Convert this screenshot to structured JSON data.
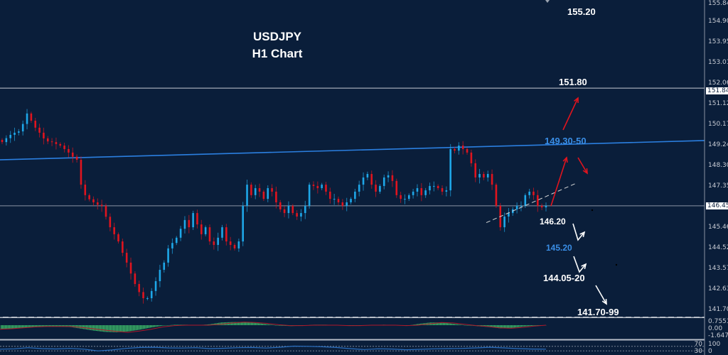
{
  "title": {
    "symbol": "USDJPY",
    "timeframe": "H1 Chart"
  },
  "colors": {
    "background": "#0a1e3a",
    "bull": "#1ea7e8",
    "bear": "#e0141e",
    "trendline": "#2b7fe0",
    "support_line": "#d0d0d0",
    "macd_hist": "#3fbf6a",
    "macd_signal": "#b0182a",
    "rsi": "#2a6fc0"
  },
  "chart_data": {
    "type": "candlestick",
    "title": "USDJPY H1 Chart",
    "ylim": [
      141.7,
      155.845
    ],
    "y_ticks": [
      "155.845",
      "154.900",
      "153.955",
      "153.010",
      "152.065",
      "151.120",
      "150.175",
      "149.245",
      "148.300",
      "147.355",
      "145.465",
      "144.520",
      "143.575",
      "142.630",
      "141.700"
    ],
    "price_markers": [
      {
        "label": "151.841",
        "value": 151.841
      },
      {
        "label": "146.452",
        "value": 146.452
      }
    ],
    "close": [
      149.37,
      149.55,
      149.7,
      149.8,
      149.86,
      150.2,
      150.68,
      150.35,
      150.03,
      149.8,
      149.54,
      149.4,
      149.37,
      149.28,
      149.21,
      149.05,
      148.89,
      148.7,
      148.56,
      147.42,
      146.94,
      146.75,
      146.61,
      146.5,
      146.45,
      145.95,
      145.47,
      145.15,
      144.82,
      144.3,
      143.85,
      143.35,
      142.87,
      142.5,
      142.22,
      142.22,
      142.55,
      143.0,
      143.52,
      143.85,
      144.5,
      144.75,
      144.99,
      145.4,
      145.8,
      145.47,
      146.12,
      145.6,
      145.15,
      145.47,
      144.82,
      144.66,
      144.99,
      145.47,
      144.82,
      144.66,
      144.5,
      144.82,
      146.45,
      147.42,
      146.94,
      147.26,
      147.1,
      146.77,
      147.26,
      147.1,
      146.61,
      146.29,
      146.12,
      146.45,
      146.12,
      145.96,
      146.12,
      146.45,
      147.42,
      147.36,
      147.26,
      147.42,
      147.1,
      146.77,
      146.77,
      146.61,
      146.45,
      146.61,
      146.77,
      147.1,
      147.42,
      147.75,
      147.91,
      147.42,
      147.1,
      147.36,
      147.75,
      147.85,
      147.59,
      146.94,
      146.77,
      146.77,
      146.94,
      147.1,
      147.26,
      146.94,
      147.16,
      147.36,
      147.36,
      147.26,
      147.1,
      147.16,
      149.05,
      148.98,
      149.21,
      149.05,
      148.89,
      148.4,
      147.75,
      147.91,
      147.75,
      147.91,
      147.42,
      146.45,
      145.47,
      145.96,
      146.12,
      146.29,
      146.45,
      146.45,
      146.94,
      147.1,
      146.94,
      146.45,
      146.38,
      146.45
    ],
    "resistance_trendline": {
      "start": 148.56,
      "end": 149.44
    },
    "support_trendline": {
      "start": 145.68,
      "end": 147.48
    },
    "annotations": [
      {
        "text": "155.20",
        "color": "#ffffff"
      },
      {
        "text": "151.80",
        "color": "#ffffff"
      },
      {
        "text": "149.30-50",
        "color": "#3a8ee6"
      },
      {
        "text": "146.20",
        "color": "#ffffff"
      },
      {
        "text": "145.20",
        "color": "#3a8ee6"
      },
      {
        "text": "144.05-20",
        "color": "#ffffff"
      },
      {
        "text": "141.70-99",
        "color": "#ffffff"
      }
    ],
    "macd": {
      "axis_labels": [
        "0.7551",
        "0.00",
        "-1.6472"
      ],
      "histogram": [
        -0.9,
        -0.8,
        -0.6,
        -0.4,
        -0.3,
        -0.3,
        -0.4,
        -0.8,
        -1.2,
        -1.5,
        -1.6,
        -1.4,
        -1.0,
        -0.5,
        -0.1,
        0.1,
        0.1,
        0.0,
        0.2,
        0.6,
        0.7,
        0.7,
        0.5,
        0.2,
        -0.1,
        -0.2,
        -0.1,
        0.1,
        0.1,
        0.0,
        -0.1,
        0.0,
        0.0,
        0.1,
        0.0,
        -0.1,
        0.3,
        0.6,
        0.6,
        0.3,
        0.0,
        -0.2,
        -0.4,
        -0.7,
        -0.6,
        -0.3,
        -0.1,
        0.0
      ],
      "signal": [
        -0.9,
        -0.8,
        -0.6,
        -0.4,
        -0.3,
        -0.3,
        -0.3,
        -0.5,
        -0.8,
        -1.1,
        -1.4,
        -1.6,
        -1.3,
        -0.9,
        -0.4,
        -0.1,
        0.0,
        0.0,
        0.0,
        0.2,
        0.5,
        0.7,
        0.6,
        0.4,
        0.1,
        -0.1,
        -0.1,
        0.0,
        0.0,
        0.0,
        -0.1,
        -0.1,
        0.0,
        0.0,
        0.0,
        -0.1,
        0.0,
        0.3,
        0.6,
        0.5,
        0.2,
        -0.1,
        -0.3,
        -0.6,
        -0.7,
        -0.5,
        -0.2,
        0.0
      ]
    },
    "rsi": {
      "axis_labels": [
        "100",
        "70",
        "30",
        "0"
      ],
      "values": [
        45,
        48,
        58,
        50,
        47,
        52,
        45,
        30,
        38,
        52,
        60,
        62,
        56,
        55,
        58,
        50,
        53,
        58,
        60,
        55,
        62,
        72,
        70,
        66,
        60,
        50,
        42,
        48,
        46,
        40,
        44,
        48,
        50,
        52,
        56,
        62,
        56,
        50,
        46,
        45
      ]
    }
  }
}
